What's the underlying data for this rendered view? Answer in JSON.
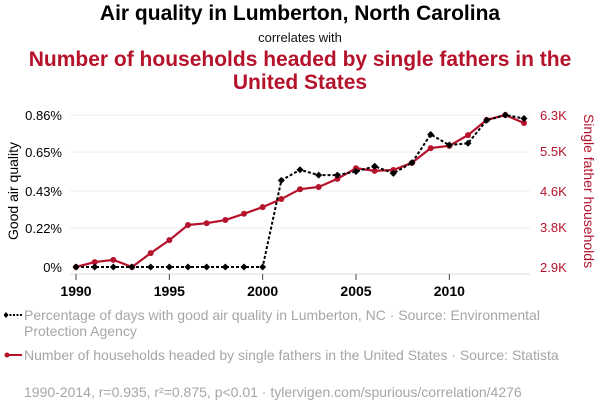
{
  "title": "Air quality in Lumberton, North Carolina",
  "subtitle": "correlates with",
  "title2": "Number of households headed by single fathers in the United States",
  "legend": {
    "series1": "Percentage of days with good air quality in Lumberton, NC · Source: Environmental Protection Agency",
    "series2": "Number of households headed by single fathers in the United States · Source: Statista"
  },
  "footer": "1990-2014, r=0.935, r²=0.875, p<0.01 · tylervigen.com/spurious/correlation/4276",
  "colors": {
    "series1": "#000000",
    "series2": "#b5122b",
    "grid": "#eeeeee",
    "legend_text": "#a6a6a6"
  },
  "chart_data": {
    "type": "line",
    "title": "Air quality in Lumberton, North Carolina correlates with Number of households headed by single fathers in the United States",
    "x": [
      1990,
      1991,
      1992,
      1993,
      1994,
      1995,
      1996,
      1997,
      1998,
      1999,
      2000,
      2001,
      2002,
      2003,
      2004,
      2005,
      2006,
      2007,
      2008,
      2009,
      2010,
      2011,
      2012,
      2013,
      2014
    ],
    "xlim": [
      1990,
      2014
    ],
    "xticks": [
      1990,
      1995,
      2000,
      2005,
      2010
    ],
    "xtick_labels": [
      "1990",
      "1995",
      "2000",
      "2005",
      "2010"
    ],
    "ylabel_left": "Good air quality",
    "ylim_left": [
      0,
      0.86
    ],
    "yticks_left": [
      0,
      0.22,
      0.43,
      0.65,
      0.86
    ],
    "ytick_labels_left": [
      "0%",
      "0.22%",
      "0.43%",
      "0.65%",
      "0.86%"
    ],
    "ylabel_right": "Single father households",
    "ylim_right": [
      2.9,
      6.3
    ],
    "yticks_right": [
      2.9,
      3.8,
      4.6,
      5.5,
      6.3
    ],
    "ytick_labels_right": [
      "2.9K",
      "3.8K",
      "4.6K",
      "5.5K",
      "6.3K"
    ],
    "grid": true,
    "legend_position": "bottom",
    "series": [
      {
        "name": "Percentage of days with good air quality in Lumberton, NC",
        "axis": "left",
        "style": "dotted-diamond",
        "values": [
          0,
          0,
          0,
          0,
          0,
          0,
          0,
          0,
          0,
          0,
          0,
          0.49,
          0.55,
          0.52,
          0.52,
          0.54,
          0.57,
          0.53,
          0.59,
          0.75,
          0.69,
          0.7,
          0.83,
          0.86,
          0.84
        ]
      },
      {
        "name": "Number of households headed by single fathers in the United States",
        "axis": "right",
        "unit": "thousand",
        "style": "solid-dot",
        "values": [
          2.9,
          3.01,
          3.06,
          2.9,
          3.21,
          3.5,
          3.84,
          3.88,
          3.95,
          4.09,
          4.24,
          4.42,
          4.64,
          4.69,
          4.87,
          5.11,
          5.05,
          5.07,
          5.23,
          5.56,
          5.61,
          5.85,
          6.19,
          6.3,
          6.12
        ]
      }
    ]
  }
}
